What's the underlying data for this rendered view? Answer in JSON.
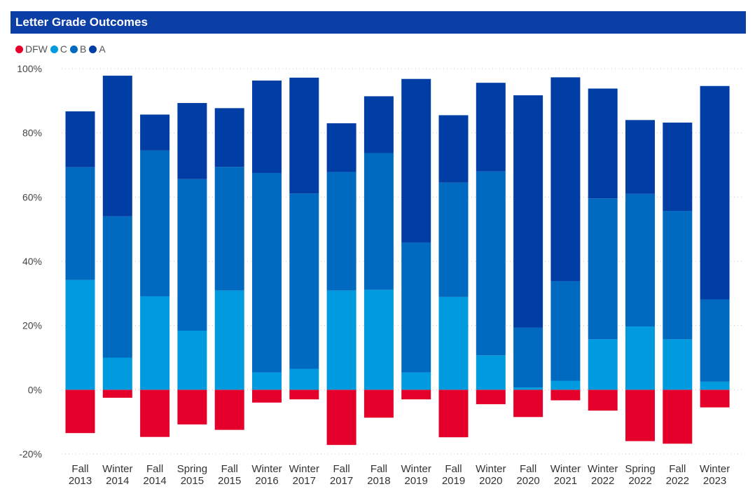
{
  "header": {
    "title": "Letter Grade Outcomes"
  },
  "legend": [
    {
      "name": "DFW",
      "color": "#e4002b"
    },
    {
      "name": "C",
      "color": "#009bde"
    },
    {
      "name": "B",
      "color": "#0069c0"
    },
    {
      "name": "A",
      "color": "#003da5"
    }
  ],
  "chart_data": {
    "type": "bar",
    "stacked": true,
    "title": "Letter Grade Outcomes",
    "xlabel": "",
    "ylabel": "",
    "ylim": [
      -0.2,
      1.0
    ],
    "yticks": [
      "100%",
      "80%",
      "60%",
      "40%",
      "20%",
      "0%",
      "-20%"
    ],
    "ytick_values": [
      1.0,
      0.8,
      0.6,
      0.4,
      0.2,
      0.0,
      -0.2
    ],
    "grid": true,
    "legend_position": "top-left",
    "categories": [
      [
        "Fall",
        "2013"
      ],
      [
        "Winter",
        "2014"
      ],
      [
        "Fall",
        "2014"
      ],
      [
        "Spring",
        "2015"
      ],
      [
        "Fall",
        "2015"
      ],
      [
        "Winter",
        "2016"
      ],
      [
        "Winter",
        "2017"
      ],
      [
        "Fall",
        "2017"
      ],
      [
        "Fall",
        "2018"
      ],
      [
        "Winter",
        "2019"
      ],
      [
        "Fall",
        "2019"
      ],
      [
        "Winter",
        "2020"
      ],
      [
        "Fall",
        "2020"
      ],
      [
        "Winter",
        "2021"
      ],
      [
        "Winter",
        "2022"
      ],
      [
        "Spring",
        "2022"
      ],
      [
        "Fall",
        "2022"
      ],
      [
        "Winter",
        "2023"
      ]
    ],
    "series": [
      {
        "name": "DFW",
        "color": "#e4002b",
        "values": [
          -0.135,
          -0.025,
          -0.147,
          -0.108,
          -0.125,
          -0.04,
          -0.03,
          -0.172,
          -0.087,
          -0.03,
          -0.148,
          -0.045,
          -0.085,
          -0.033,
          -0.065,
          -0.16,
          -0.168,
          -0.055
        ]
      },
      {
        "name": "C",
        "color": "#009bde",
        "values": [
          0.342,
          0.1,
          0.291,
          0.184,
          0.309,
          0.054,
          0.065,
          0.309,
          0.311,
          0.054,
          0.289,
          0.107,
          0.007,
          0.028,
          0.157,
          0.197,
          0.157,
          0.025
        ]
      },
      {
        "name": "B",
        "color": "#0069c0",
        "values": [
          0.351,
          0.44,
          0.454,
          0.472,
          0.385,
          0.621,
          0.546,
          0.369,
          0.426,
          0.404,
          0.356,
          0.573,
          0.186,
          0.31,
          0.439,
          0.413,
          0.4,
          0.256
        ]
      },
      {
        "name": "A",
        "color": "#003da5",
        "values": [
          0.174,
          0.438,
          0.112,
          0.237,
          0.183,
          0.288,
          0.361,
          0.152,
          0.177,
          0.51,
          0.21,
          0.276,
          0.724,
          0.635,
          0.342,
          0.23,
          0.275,
          0.665
        ]
      }
    ]
  }
}
